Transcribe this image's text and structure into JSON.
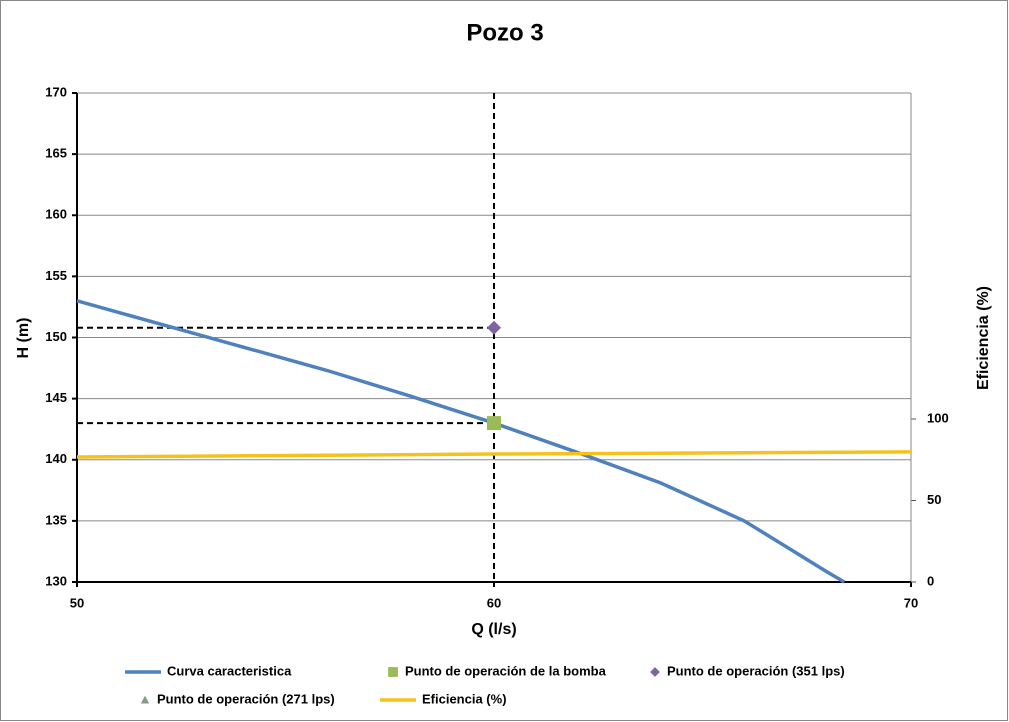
{
  "chart_data": {
    "type": "line",
    "title": "Pozo 3",
    "x_label": "Q (l/s)",
    "y_label": "H (m)",
    "y2_label": "Eficiencia (%)",
    "xlim": [
      50,
      70
    ],
    "xticks": [
      50,
      60,
      70
    ],
    "ylim": [
      130,
      170
    ],
    "yticks": [
      130,
      135,
      140,
      145,
      150,
      155,
      160,
      165,
      170
    ],
    "y2lim": [
      0,
      300
    ],
    "y2ticks": [
      0,
      50,
      100
    ],
    "grid": true,
    "series": [
      {
        "name": "Curva caracteristica",
        "color": "#4f81bd",
        "marker": "line",
        "x": [
          50,
          52,
          54,
          56,
          58,
          60,
          62,
          64,
          66,
          68,
          68.4
        ],
        "values": [
          153,
          151.1,
          149.2,
          147.3,
          145.2,
          143.0,
          140.6,
          138.1,
          135.0,
          130.8,
          130
        ]
      },
      {
        "name": "Punto de operación de la bomba",
        "color": "#9bbb59",
        "marker": "square",
        "x": [
          60
        ],
        "values": [
          143
        ]
      },
      {
        "name": "Punto de operación (351 lps)",
        "color": "#8064a2",
        "marker": "diamond",
        "x": [
          60
        ],
        "values": [
          150.8
        ]
      },
      {
        "name": "Punto de operación (271 lps)",
        "color": "#7f9f7f",
        "marker": "triangle",
        "x": [],
        "values": []
      },
      {
        "name": "Eficiencia (%)",
        "color": "#f5c21b",
        "marker": "line",
        "axis": "y2",
        "x": [
          50,
          60,
          70
        ],
        "values": [
          76.7,
          78.5,
          79.8
        ]
      }
    ]
  }
}
